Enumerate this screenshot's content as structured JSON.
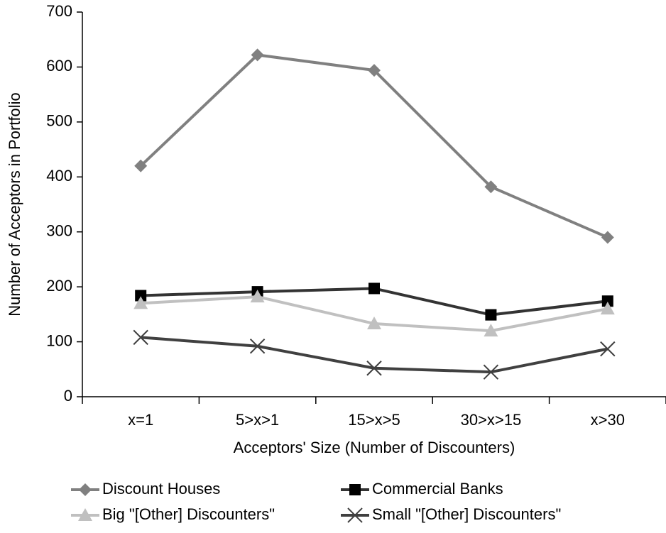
{
  "chart_data": {
    "type": "line",
    "x_label": "Acceptors' Size (Number of Discounters)",
    "y_label": "Number of Acceptors in Portfolio",
    "categories": [
      "x=1",
      "5>x>1",
      "15>x>5",
      "30>x>15",
      "x>30"
    ],
    "series": [
      {
        "name": "Discount Houses",
        "color": "#808080",
        "marker": "diamond",
        "values": [
          420,
          622,
          594,
          382,
          290
        ]
      },
      {
        "name": "Commercial Banks",
        "color": "#333333",
        "marker": "square",
        "values": [
          184,
          191,
          197,
          149,
          174
        ]
      },
      {
        "name": "Big \"[Other] Discounters\"",
        "color": "#c0c0c0",
        "marker": "triangle",
        "values": [
          170,
          182,
          133,
          120,
          160
        ]
      },
      {
        "name": "Small \"[Other] Discounters\"",
        "color": "#404040",
        "marker": "x",
        "values": [
          108,
          92,
          52,
          45,
          87
        ]
      }
    ],
    "ylim": [
      0,
      700
    ],
    "yticks": [
      0,
      100,
      200,
      300,
      400,
      500,
      600,
      700
    ],
    "grid": false
  }
}
